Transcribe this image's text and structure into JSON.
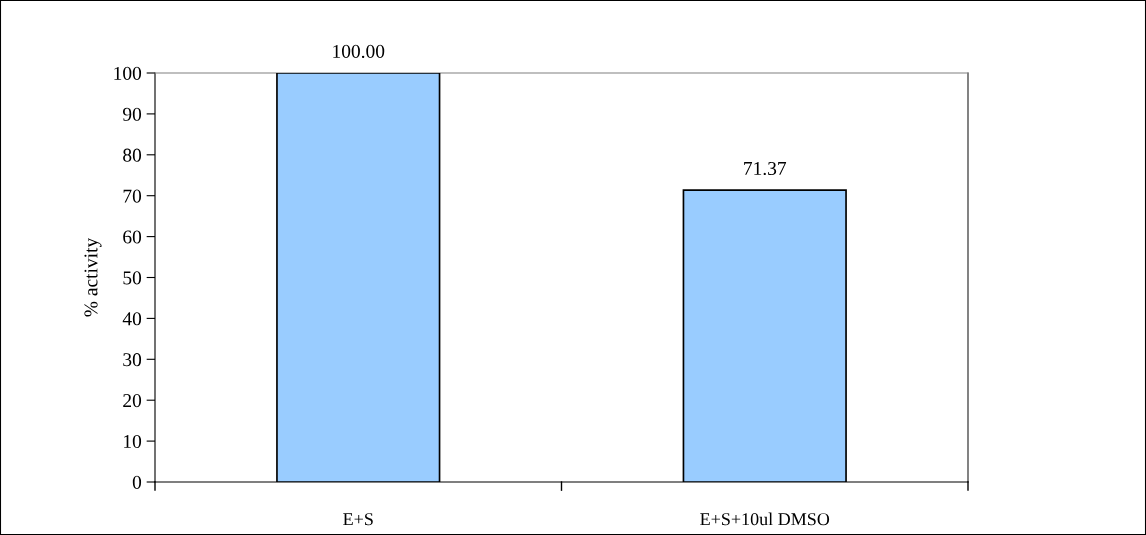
{
  "chart_data": {
    "type": "bar",
    "ylabel": "% activity",
    "categories": [
      "E+S",
      "E+S+10ul DMSO"
    ],
    "values": [
      100.0,
      71.37
    ],
    "value_labels": [
      "100.00",
      "71.37"
    ],
    "color": "#99ccff",
    "ylim": [
      0,
      100
    ],
    "yticks": [
      0,
      10,
      20,
      30,
      40,
      50,
      60,
      70,
      80,
      90,
      100
    ],
    "grid": false,
    "legend": false
  }
}
